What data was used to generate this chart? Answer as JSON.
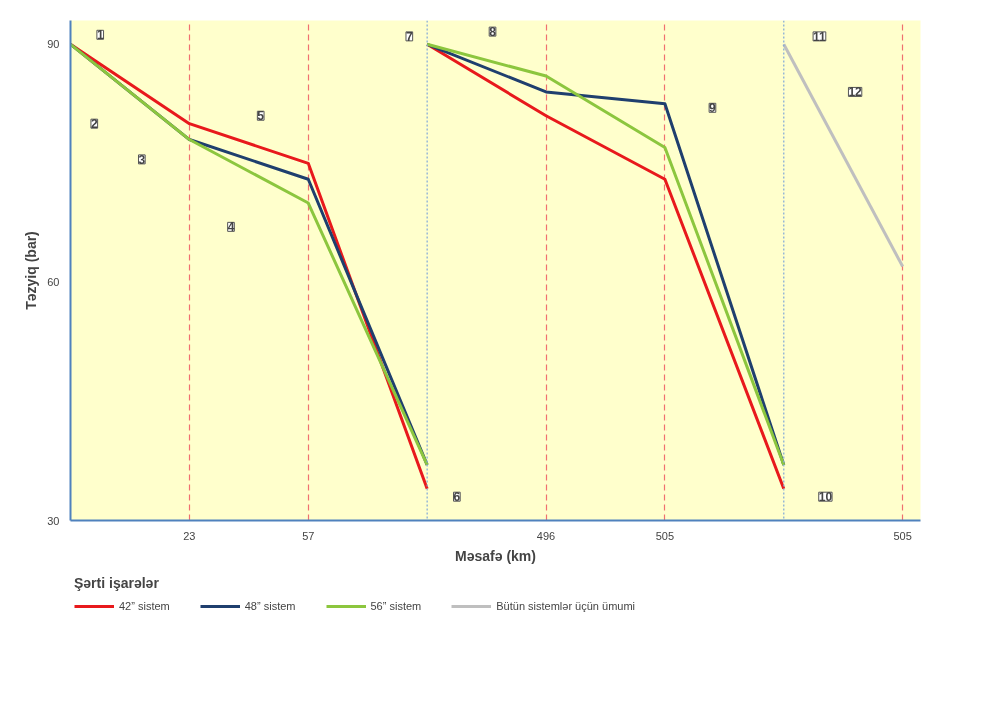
{
  "chart_data": {
    "type": "line",
    "xlabel": "Məsafə (km)",
    "ylabel": "Təzyiq (bar)",
    "legend_title": "Şərti işarələr",
    "categories": [
      null,
      "23",
      "57",
      null,
      "496",
      "505",
      null,
      "505"
    ],
    "ylim": [
      30,
      93
    ],
    "yticks": [
      30,
      60,
      90
    ],
    "grid": "x",
    "legend": "bottom",
    "marker": "none",
    "line_style": "solid",
    "series": [
      {
        "name": "42” sistem",
        "color": "#e8191c",
        "values": [
          90,
          80,
          75,
          34,
          null,
          null,
          null,
          null
        ]
      },
      {
        "color": "#e8191c",
        "values": [
          null,
          null,
          null,
          90,
          81,
          73,
          34,
          null
        ]
      },
      {
        "name": "48” sistem",
        "color": "#1f3f6e",
        "values": [
          90,
          78,
          73,
          37,
          null,
          null,
          null,
          null
        ]
      },
      {
        "color": "#1f3f6e",
        "values": [
          null,
          null,
          null,
          90,
          84,
          82.5,
          37,
          null
        ]
      },
      {
        "name": "56” sistem",
        "color": "#8cc63e",
        "values": [
          90,
          78,
          70,
          37,
          null,
          null,
          null,
          null
        ]
      },
      {
        "color": "#8cc63e",
        "values": [
          null,
          null,
          null,
          90,
          86,
          77,
          37,
          null
        ]
      },
      {
        "name": "Bütün sistemlər üçün ümumi",
        "color": "#bfbfbf",
        "values": [
          null,
          null,
          null,
          null,
          null,
          null,
          90,
          62
        ]
      }
    ],
    "annotations": [
      "1",
      "2",
      "3",
      "4",
      "5",
      "6",
      "7",
      "8",
      "9",
      "10",
      "11",
      "12"
    ]
  }
}
